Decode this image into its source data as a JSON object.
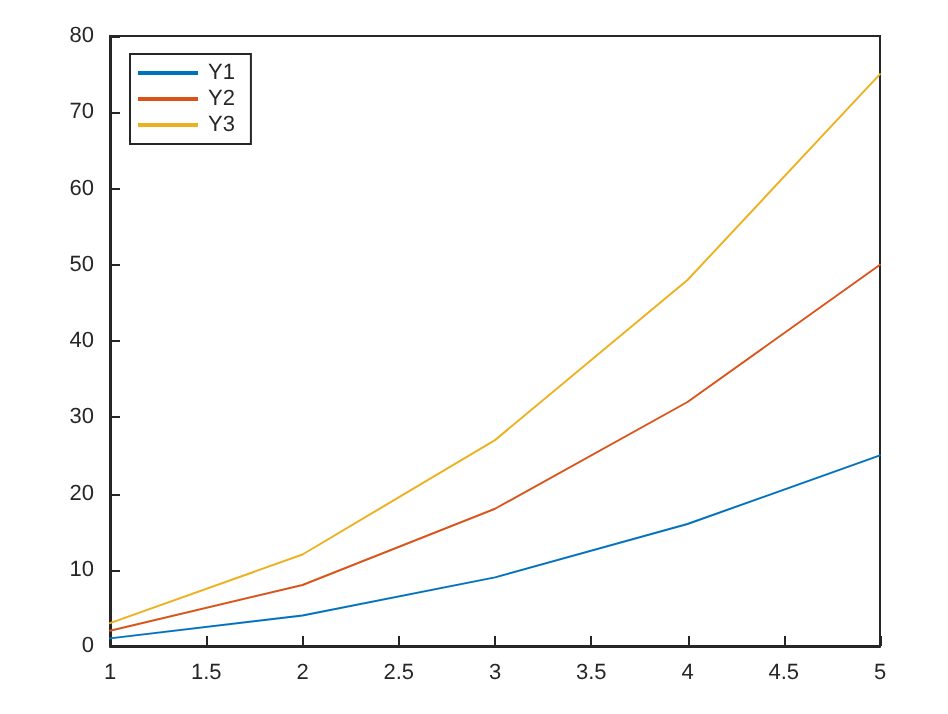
{
  "chart_data": {
    "type": "line",
    "x": [
      1,
      2,
      3,
      4,
      5
    ],
    "series": [
      {
        "name": "Y1",
        "color": "#0072bd",
        "values": [
          1,
          4,
          9,
          16,
          25
        ]
      },
      {
        "name": "Y2",
        "color": "#d95319",
        "values": [
          2,
          8,
          18,
          32,
          50
        ]
      },
      {
        "name": "Y3",
        "color": "#edb120",
        "values": [
          3,
          12,
          27,
          48,
          75
        ]
      }
    ],
    "xlim": [
      1,
      5
    ],
    "xticks": [
      1,
      1.5,
      2,
      2.5,
      3,
      3.5,
      4,
      4.5,
      5
    ],
    "ylim": [
      0,
      80
    ],
    "yticks": [
      0,
      10,
      20,
      30,
      40,
      50,
      60,
      70,
      80
    ],
    "legend": "top left",
    "marker": "none",
    "line_style": "solid",
    "grid": false
  }
}
